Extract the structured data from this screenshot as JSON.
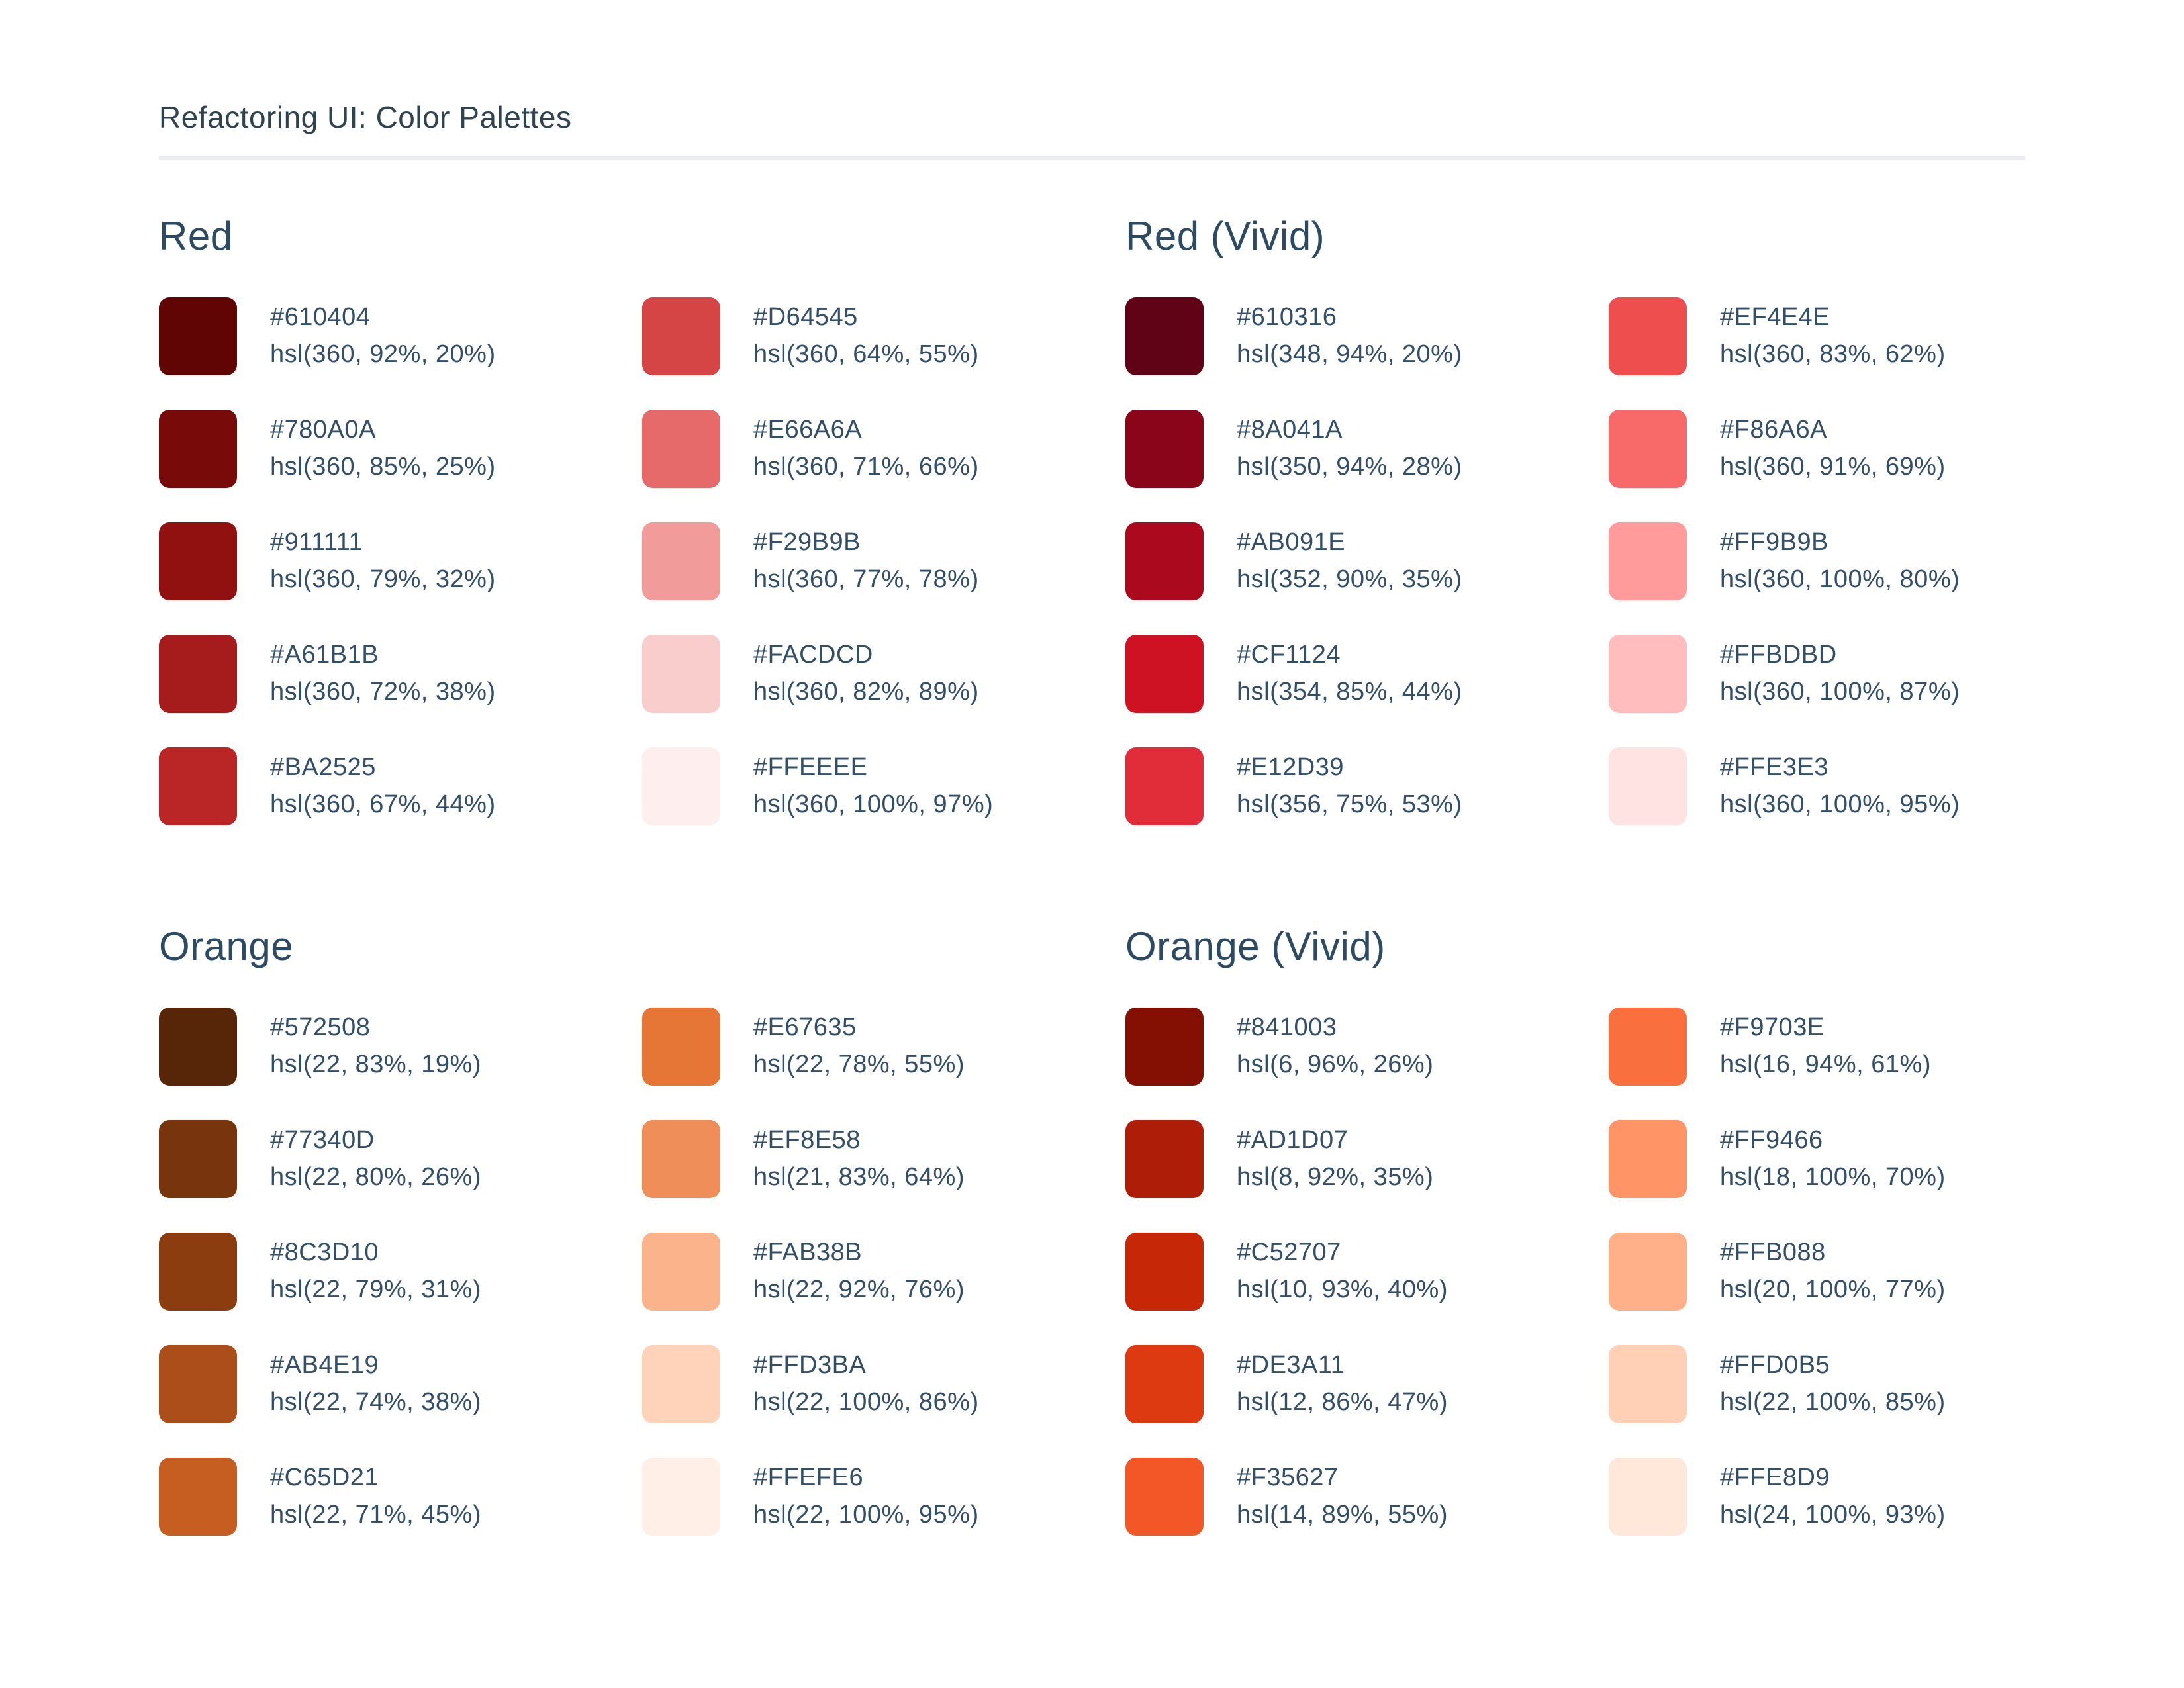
{
  "page": {
    "title": "Refactoring UI: Color Palettes"
  },
  "colors": {
    "background": "#FFFFFF",
    "title_text": "#2E4250",
    "heading_text": "#2C4A63",
    "body_text": "#334E68",
    "divider": "#E9EDF0"
  },
  "palettes": [
    {
      "name": "Red",
      "swatches": [
        {
          "hex": "#610404",
          "hsl": "hsl(360, 92%, 20%)"
        },
        {
          "hex": "#780A0A",
          "hsl": "hsl(360, 85%, 25%)"
        },
        {
          "hex": "#911111",
          "hsl": "hsl(360, 79%, 32%)"
        },
        {
          "hex": "#A61B1B",
          "hsl": "hsl(360, 72%, 38%)"
        },
        {
          "hex": "#BA2525",
          "hsl": "hsl(360, 67%, 44%)"
        },
        {
          "hex": "#D64545",
          "hsl": "hsl(360, 64%, 55%)"
        },
        {
          "hex": "#E66A6A",
          "hsl": "hsl(360, 71%, 66%)"
        },
        {
          "hex": "#F29B9B",
          "hsl": "hsl(360, 77%, 78%)"
        },
        {
          "hex": "#FACDCD",
          "hsl": "hsl(360, 82%, 89%)"
        },
        {
          "hex": "#FFEEEE",
          "hsl": "hsl(360, 100%, 97%)"
        }
      ]
    },
    {
      "name": "Red (Vivid)",
      "swatches": [
        {
          "hex": "#610316",
          "hsl": "hsl(348, 94%, 20%)"
        },
        {
          "hex": "#8A041A",
          "hsl": "hsl(350, 94%, 28%)"
        },
        {
          "hex": "#AB091E",
          "hsl": "hsl(352, 90%, 35%)"
        },
        {
          "hex": "#CF1124",
          "hsl": "hsl(354, 85%, 44%)"
        },
        {
          "hex": "#E12D39",
          "hsl": "hsl(356, 75%, 53%)"
        },
        {
          "hex": "#EF4E4E",
          "hsl": "hsl(360, 83%, 62%)"
        },
        {
          "hex": "#F86A6A",
          "hsl": "hsl(360, 91%, 69%)"
        },
        {
          "hex": "#FF9B9B",
          "hsl": "hsl(360, 100%, 80%)"
        },
        {
          "hex": "#FFBDBD",
          "hsl": "hsl(360, 100%, 87%)"
        },
        {
          "hex": "#FFE3E3",
          "hsl": "hsl(360, 100%, 95%)"
        }
      ]
    },
    {
      "name": "Orange",
      "swatches": [
        {
          "hex": "#572508",
          "hsl": "hsl(22, 83%, 19%)"
        },
        {
          "hex": "#77340D",
          "hsl": "hsl(22, 80%, 26%)"
        },
        {
          "hex": "#8C3D10",
          "hsl": "hsl(22, 79%, 31%)"
        },
        {
          "hex": "#AB4E19",
          "hsl": "hsl(22, 74%, 38%)"
        },
        {
          "hex": "#C65D21",
          "hsl": "hsl(22, 71%, 45%)"
        },
        {
          "hex": "#E67635",
          "hsl": "hsl(22, 78%, 55%)"
        },
        {
          "hex": "#EF8E58",
          "hsl": "hsl(21, 83%, 64%)"
        },
        {
          "hex": "#FAB38B",
          "hsl": "hsl(22, 92%, 76%)"
        },
        {
          "hex": "#FFD3BA",
          "hsl": "hsl(22, 100%, 86%)"
        },
        {
          "hex": "#FFEFE6",
          "hsl": "hsl(22, 100%, 95%)"
        }
      ]
    },
    {
      "name": "Orange (Vivid)",
      "swatches": [
        {
          "hex": "#841003",
          "hsl": "hsl(6, 96%, 26%)"
        },
        {
          "hex": "#AD1D07",
          "hsl": "hsl(8, 92%, 35%)"
        },
        {
          "hex": "#C52707",
          "hsl": "hsl(10, 93%, 40%)"
        },
        {
          "hex": "#DE3A11",
          "hsl": "hsl(12, 86%, 47%)"
        },
        {
          "hex": "#F35627",
          "hsl": "hsl(14, 89%, 55%)"
        },
        {
          "hex": "#F9703E",
          "hsl": "hsl(16, 94%, 61%)"
        },
        {
          "hex": "#FF9466",
          "hsl": "hsl(18, 100%, 70%)"
        },
        {
          "hex": "#FFB088",
          "hsl": "hsl(20, 100%, 77%)"
        },
        {
          "hex": "#FFD0B5",
          "hsl": "hsl(22, 100%, 85%)"
        },
        {
          "hex": "#FFE8D9",
          "hsl": "hsl(24, 100%, 93%)"
        }
      ]
    }
  ]
}
